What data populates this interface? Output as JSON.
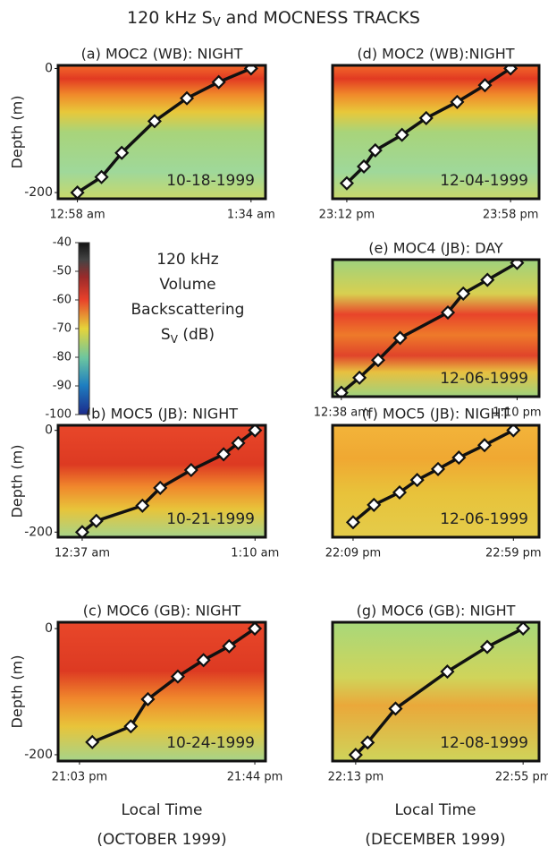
{
  "title": {
    "pre": "120 kHz S",
    "sub": "V",
    "post": " and MOCNESS TRACKS"
  },
  "colorbar": {
    "lim": [
      -100,
      -40
    ],
    "ticks": [
      -40,
      -50,
      -60,
      -70,
      -80,
      -90,
      -100
    ],
    "label": [
      "120 kHz",
      "Volume",
      "Backscattering"
    ],
    "unit_pre": "S",
    "unit_sub": "V",
    "unit_post": " (dB)"
  },
  "bottom_labels": [
    [
      "Local Time",
      "(OCTOBER 1999)"
    ],
    [
      "Local Time",
      "(DECEMBER 1999)"
    ]
  ],
  "chart_data": [
    {
      "type": "line",
      "title": "(a) MOC2 (WB): NIGHT",
      "date": "10-18-1999",
      "x": [
        0,
        5,
        9.2,
        16,
        22.7,
        29.3,
        36
      ],
      "values": [
        -200,
        -175,
        -136,
        -85,
        -48,
        -22,
        0
      ],
      "xlim": [
        -4,
        39
      ],
      "xticks": [
        {
          "value": 0,
          "label": "12:58 am"
        },
        {
          "value": 36,
          "label": "1:34 am"
        }
      ],
      "ylim": [
        -210,
        5
      ],
      "yticks": [
        0,
        -200
      ],
      "ylabel": "Depth (m)"
    },
    {
      "type": "line",
      "title": "(b) MOC5 (JB): NIGHT",
      "date": "10-21-1999",
      "x": [
        0,
        2.7,
        11.5,
        14.9,
        20.8,
        27,
        29.8,
        33
      ],
      "values": [
        -200,
        -178,
        -148,
        -113,
        -78,
        -47,
        -25,
        0
      ],
      "xlim": [
        -4.6,
        35
      ],
      "xticks": [
        {
          "value": 0,
          "label": "12:37 am"
        },
        {
          "value": 33,
          "label": "1:10 am"
        }
      ],
      "ylim": [
        -210,
        10
      ],
      "yticks": [
        0,
        -200
      ],
      "ylabel": "Depth (m)"
    },
    {
      "type": "line",
      "title": "(c) MOC6 (GB): NIGHT",
      "date": "10-24-1999",
      "x": [
        3,
        12,
        16,
        23,
        29,
        35,
        41
      ],
      "values": [
        -180,
        -155,
        -112,
        -76,
        -50,
        -28,
        0
      ],
      "xlim": [
        -5,
        43.5
      ],
      "xticks": [
        {
          "value": 0,
          "label": "21:03 pm"
        },
        {
          "value": 41,
          "label": "21:44 pm"
        }
      ],
      "ylim": [
        -210,
        10
      ],
      "yticks": [
        0,
        -200
      ],
      "ylabel": "Depth (m)"
    },
    {
      "type": "line",
      "title": "(d) MOC2 (WB):NIGHT",
      "date": "12-04-1999",
      "x": [
        0,
        4.8,
        8,
        15.5,
        22.3,
        31,
        38.8,
        46
      ],
      "values": [
        -185,
        -158,
        -132,
        -107,
        -80,
        -54,
        -27,
        0
      ],
      "xlim": [
        -4,
        54
      ],
      "xticks": [
        {
          "value": 0,
          "label": "23:12 pm"
        },
        {
          "value": 46,
          "label": "23:58 pm"
        }
      ],
      "ylim": [
        -210,
        5
      ]
    },
    {
      "type": "line",
      "title": "(e) MOC4 (JB): DAY",
      "date": "12-06-1999",
      "x": [
        0,
        3.3,
        6.7,
        10.7,
        19.4,
        22.2,
        26.6,
        32
      ],
      "values": [
        -199,
        -176,
        -149,
        -115,
        -76,
        -47,
        -26,
        0
      ],
      "xlim": [
        -1.6,
        36
      ],
      "xticks": [
        {
          "value": 0,
          "label": "12:38 am"
        },
        {
          "value": 32,
          "label": "1:10 pm"
        }
      ],
      "ylim": [
        -205,
        5
      ]
    },
    {
      "type": "line",
      "title": "(f) MOC5 (JB): NIGHT",
      "date": "12-06-1999",
      "x": [
        0,
        6.5,
        14.5,
        20,
        26.5,
        33,
        41,
        50
      ],
      "values": [
        -185,
        -150,
        -125,
        -100,
        -78,
        -55,
        -30,
        0
      ],
      "xlim": [
        -6.4,
        58
      ],
      "xticks": [
        {
          "value": 0,
          "label": "22:09 pm"
        },
        {
          "value": 50,
          "label": "22:59 pm"
        }
      ],
      "ylim": [
        -215,
        10
      ]
    },
    {
      "type": "line",
      "title": "(g) MOC6 (GB): NIGHT",
      "date": "12-08-1999",
      "x": [
        0,
        3,
        10,
        23,
        33,
        42
      ],
      "values": [
        -205,
        -185,
        -130,
        -70,
        -30,
        0
      ],
      "xlim": [
        -5.8,
        46
      ],
      "xticks": [
        {
          "value": 0,
          "label": "22:13 pm"
        },
        {
          "value": 42,
          "label": "22:55 pm"
        }
      ],
      "ylim": [
        -215,
        10
      ]
    }
  ]
}
